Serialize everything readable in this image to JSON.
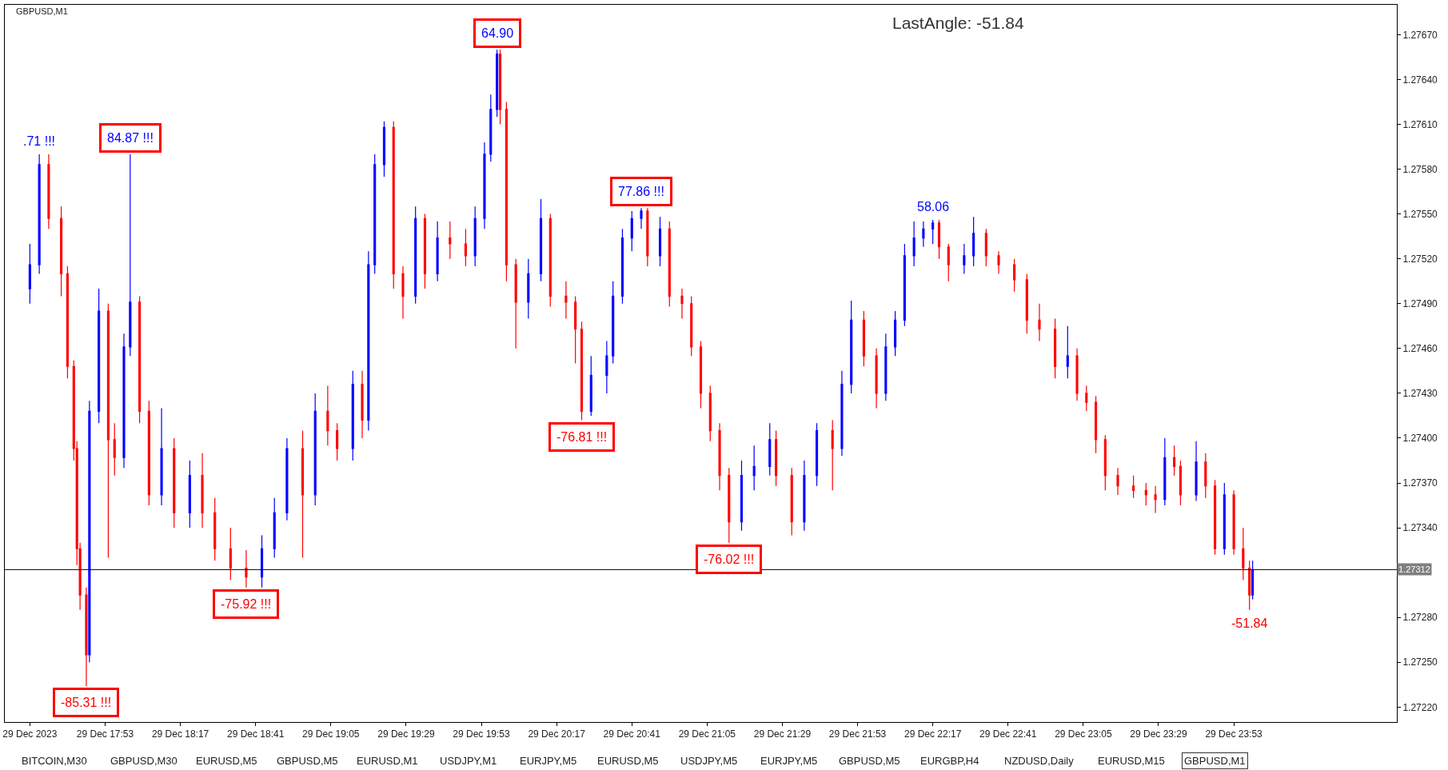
{
  "chart_data": {
    "type": "candlestick",
    "title": "GBPUSD,M1",
    "x": [
      "2023-12-29T17:29",
      "2023-12-29T17:32",
      "2023-12-29T17:35",
      "2023-12-29T17:39",
      "2023-12-29T17:41",
      "2023-12-29T17:43",
      "2023-12-29T17:44",
      "2023-12-29T17:45",
      "2023-12-29T17:47",
      "2023-12-29T17:48",
      "2023-12-29T17:51",
      "2023-12-29T17:54",
      "2023-12-29T17:56",
      "2023-12-29T17:59",
      "2023-12-29T18:01",
      "2023-12-29T18:04",
      "2023-12-29T18:07",
      "2023-12-29T18:11",
      "2023-12-29T18:15",
      "2023-12-29T18:20",
      "2023-12-29T18:24",
      "2023-12-29T18:28",
      "2023-12-29T18:33",
      "2023-12-29T18:38",
      "2023-12-29T18:43",
      "2023-12-29T18:47",
      "2023-12-29T18:51",
      "2023-12-29T18:56",
      "2023-12-29T19:00",
      "2023-12-29T19:04",
      "2023-12-29T19:07",
      "2023-12-29T19:12",
      "2023-12-29T19:15",
      "2023-12-29T19:17",
      "2023-12-29T19:19",
      "2023-12-29T19:22",
      "2023-12-29T19:25",
      "2023-12-29T19:28",
      "2023-12-29T19:32",
      "2023-12-29T19:35",
      "2023-12-29T19:39",
      "2023-12-29T19:43",
      "2023-12-29T19:48",
      "2023-12-29T19:51",
      "2023-12-29T19:54",
      "2023-12-29T19:56",
      "2023-12-29T19:58",
      "2023-12-29T19:59",
      "2023-12-29T20:01",
      "2023-12-29T20:04",
      "2023-12-29T20:08",
      "2023-12-29T20:12",
      "2023-12-29T20:15",
      "2023-12-29T20:20",
      "2023-12-29T20:23",
      "2023-12-29T20:25",
      "2023-12-29T20:28",
      "2023-12-29T20:33",
      "2023-12-29T20:35",
      "2023-12-29T20:38",
      "2023-12-29T20:41",
      "2023-12-29T20:44",
      "2023-12-29T20:46",
      "2023-12-29T20:50",
      "2023-12-29T20:53",
      "2023-12-29T20:57",
      "2023-12-29T21:00",
      "2023-12-29T21:03",
      "2023-12-29T21:06",
      "2023-12-29T21:09",
      "2023-12-29T21:12",
      "2023-12-29T21:16",
      "2023-12-29T21:20",
      "2023-12-29T21:25",
      "2023-12-29T21:27",
      "2023-12-29T21:32",
      "2023-12-29T21:36",
      "2023-12-29T21:40",
      "2023-12-29T21:45",
      "2023-12-29T21:48",
      "2023-12-29T21:51",
      "2023-12-29T21:55",
      "2023-12-29T21:59",
      "2023-12-29T22:02",
      "2023-12-29T22:05",
      "2023-12-29T22:08",
      "2023-12-29T22:11",
      "2023-12-29T22:14",
      "2023-12-29T22:17",
      "2023-12-29T22:19",
      "2023-12-29T22:22",
      "2023-12-29T22:27",
      "2023-12-29T22:30",
      "2023-12-29T22:34",
      "2023-12-29T22:38",
      "2023-12-29T22:43",
      "2023-12-29T22:47",
      "2023-12-29T22:51",
      "2023-12-29T22:56",
      "2023-12-29T23:00",
      "2023-12-29T23:03",
      "2023-12-29T23:06",
      "2023-12-29T23:09",
      "2023-12-29T23:12",
      "2023-12-29T23:16",
      "2023-12-29T23:21",
      "2023-12-29T23:25",
      "2023-12-29T23:28",
      "2023-12-29T23:31",
      "2023-12-29T23:34",
      "2023-12-29T23:36",
      "2023-12-29T23:41",
      "2023-12-29T23:44",
      "2023-12-29T23:47",
      "2023-12-29T23:50",
      "2023-12-29T23:53",
      "2023-12-29T23:56",
      "2023-12-29T23:58",
      "2023-12-29T23:59"
    ],
    "ohlc": [
      [
        1.275,
        1.2753,
        1.2749,
        1.27516
      ],
      [
        1.27516,
        1.2759,
        1.2751,
        1.27583
      ],
      [
        1.27583,
        1.2759,
        1.2754,
        1.27547
      ],
      [
        1.27547,
        1.27555,
        1.27495,
        1.2751
      ],
      [
        1.2751,
        1.27515,
        1.2744,
        1.27448
      ],
      [
        1.27448,
        1.27452,
        1.27385,
        1.27393
      ],
      [
        1.27393,
        1.27398,
        1.27315,
        1.27326
      ],
      [
        1.27326,
        1.2733,
        1.27285,
        1.27295
      ],
      [
        1.27295,
        1.273,
        1.27234,
        1.27255
      ],
      [
        1.27255,
        1.27425,
        1.2725,
        1.27418
      ],
      [
        1.27418,
        1.275,
        1.2741,
        1.27485
      ],
      [
        1.27485,
        1.2749,
        1.2732,
        1.27399
      ],
      [
        1.27399,
        1.2741,
        1.27375,
        1.27387
      ],
      [
        1.27387,
        1.2747,
        1.2738,
        1.27461
      ],
      [
        1.27461,
        1.2759,
        1.27455,
        1.27491
      ],
      [
        1.27491,
        1.27495,
        1.2741,
        1.27418
      ],
      [
        1.27418,
        1.27425,
        1.27355,
        1.27362
      ],
      [
        1.27362,
        1.2742,
        1.27355,
        1.27393
      ],
      [
        1.27393,
        1.274,
        1.2734,
        1.2735
      ],
      [
        1.2735,
        1.27385,
        1.2734,
        1.27375
      ],
      [
        1.27375,
        1.2739,
        1.2734,
        1.2735
      ],
      [
        1.2735,
        1.2736,
        1.27318,
        1.27326
      ],
      [
        1.27326,
        1.2734,
        1.27305,
        1.27313
      ],
      [
        1.27313,
        1.27325,
        1.273,
        1.27307
      ],
      [
        1.27307,
        1.27335,
        1.273,
        1.27326
      ],
      [
        1.27326,
        1.2736,
        1.2732,
        1.2735
      ],
      [
        1.2735,
        1.274,
        1.27345,
        1.27393
      ],
      [
        1.27393,
        1.27405,
        1.2732,
        1.27362
      ],
      [
        1.27362,
        1.2743,
        1.27355,
        1.27418
      ],
      [
        1.27418,
        1.27435,
        1.27395,
        1.27405
      ],
      [
        1.27405,
        1.2741,
        1.27385,
        1.27393
      ],
      [
        1.27393,
        1.27445,
        1.27385,
        1.27436
      ],
      [
        1.27436,
        1.27445,
        1.274,
        1.27412
      ],
      [
        1.27412,
        1.27525,
        1.27405,
        1.27516
      ],
      [
        1.27516,
        1.2759,
        1.2751,
        1.27583
      ],
      [
        1.27583,
        1.27612,
        1.27575,
        1.27608
      ],
      [
        1.27608,
        1.27612,
        1.275,
        1.2751
      ],
      [
        1.2751,
        1.27515,
        1.2748,
        1.27495
      ],
      [
        1.27495,
        1.27555,
        1.2749,
        1.27547
      ],
      [
        1.27547,
        1.2755,
        1.275,
        1.2751
      ],
      [
        1.2751,
        1.27545,
        1.27505,
        1.27534
      ],
      [
        1.27534,
        1.27545,
        1.2752,
        1.2753
      ],
      [
        1.2753,
        1.2754,
        1.27515,
        1.27522
      ],
      [
        1.27522,
        1.27555,
        1.27515,
        1.27547
      ],
      [
        1.27547,
        1.27598,
        1.2754,
        1.2759
      ],
      [
        1.2759,
        1.2763,
        1.27585,
        1.2762
      ],
      [
        1.2762,
        1.2766,
        1.27615,
        1.27657
      ],
      [
        1.27657,
        1.2766,
        1.2761,
        1.2762
      ],
      [
        1.2762,
        1.27625,
        1.27505,
        1.27516
      ],
      [
        1.27516,
        1.2752,
        1.2746,
        1.27491
      ],
      [
        1.27491,
        1.2752,
        1.2748,
        1.2751
      ],
      [
        1.2751,
        1.2756,
        1.27505,
        1.27547
      ],
      [
        1.27547,
        1.2755,
        1.27488,
        1.27495
      ],
      [
        1.27495,
        1.27505,
        1.2748,
        1.27491
      ],
      [
        1.27491,
        1.27495,
        1.2745,
        1.27473
      ],
      [
        1.27473,
        1.27478,
        1.27412,
        1.27418
      ],
      [
        1.27418,
        1.27455,
        1.27415,
        1.27442
      ],
      [
        1.27442,
        1.27465,
        1.2743,
        1.27455
      ],
      [
        1.27455,
        1.27505,
        1.2745,
        1.27495
      ],
      [
        1.27495,
        1.2754,
        1.2749,
        1.27534
      ],
      [
        1.27534,
        1.27552,
        1.27525,
        1.27547
      ],
      [
        1.27547,
        1.27554,
        1.2754,
        1.27552
      ],
      [
        1.27552,
        1.27554,
        1.27515,
        1.27522
      ],
      [
        1.27522,
        1.27548,
        1.27515,
        1.2754
      ],
      [
        1.2754,
        1.27545,
        1.27488,
        1.27495
      ],
      [
        1.27495,
        1.275,
        1.2748,
        1.2749
      ],
      [
        1.2749,
        1.27495,
        1.27455,
        1.27461
      ],
      [
        1.27461,
        1.27465,
        1.2742,
        1.2743
      ],
      [
        1.2743,
        1.27435,
        1.27398,
        1.27405
      ],
      [
        1.27405,
        1.2741,
        1.27365,
        1.27375
      ],
      [
        1.27375,
        1.2738,
        1.2733,
        1.27344
      ],
      [
        1.27344,
        1.27385,
        1.27338,
        1.27375
      ],
      [
        1.27375,
        1.27395,
        1.27365,
        1.27381
      ],
      [
        1.27381,
        1.2741,
        1.27375,
        1.27399
      ],
      [
        1.27399,
        1.27405,
        1.27368,
        1.27375
      ],
      [
        1.27375,
        1.2738,
        1.27335,
        1.27344
      ],
      [
        1.27344,
        1.27385,
        1.27338,
        1.27375
      ],
      [
        1.27375,
        1.2741,
        1.27368,
        1.27405
      ],
      [
        1.27405,
        1.27412,
        1.27365,
        1.27393
      ],
      [
        1.27393,
        1.27445,
        1.27388,
        1.27436
      ],
      [
        1.27436,
        1.27492,
        1.2743,
        1.27479
      ],
      [
        1.27479,
        1.27485,
        1.27448,
        1.27455
      ],
      [
        1.27455,
        1.2746,
        1.2742,
        1.2743
      ],
      [
        1.2743,
        1.2747,
        1.27425,
        1.27461
      ],
      [
        1.27461,
        1.27485,
        1.27455,
        1.27479
      ],
      [
        1.27479,
        1.2753,
        1.27475,
        1.27522
      ],
      [
        1.27522,
        1.27545,
        1.27515,
        1.27534
      ],
      [
        1.27534,
        1.27545,
        1.27528,
        1.2754
      ],
      [
        1.2754,
        1.27546,
        1.2753,
        1.27544
      ],
      [
        1.27544,
        1.27546,
        1.2752,
        1.27528
      ],
      [
        1.27528,
        1.2753,
        1.27505,
        1.27516
      ],
      [
        1.27516,
        1.2753,
        1.2751,
        1.27522
      ],
      [
        1.27522,
        1.27548,
        1.27515,
        1.27537
      ],
      [
        1.27537,
        1.2754,
        1.27515,
        1.27522
      ],
      [
        1.27522,
        1.27525,
        1.2751,
        1.27516
      ],
      [
        1.27516,
        1.2752,
        1.27498,
        1.27506
      ],
      [
        1.27506,
        1.2751,
        1.2747,
        1.27479
      ],
      [
        1.27479,
        1.2749,
        1.27465,
        1.27473
      ],
      [
        1.27473,
        1.2748,
        1.2744,
        1.27448
      ],
      [
        1.27448,
        1.27475,
        1.2744,
        1.27455
      ],
      [
        1.27455,
        1.2746,
        1.27425,
        1.2743
      ],
      [
        1.2743,
        1.27435,
        1.27418,
        1.27424
      ],
      [
        1.27424,
        1.27428,
        1.2739,
        1.27399
      ],
      [
        1.27399,
        1.27402,
        1.27365,
        1.27375
      ],
      [
        1.27375,
        1.2738,
        1.27362,
        1.27368
      ],
      [
        1.27368,
        1.27375,
        1.2736,
        1.27365
      ],
      [
        1.27365,
        1.2737,
        1.27355,
        1.27362
      ],
      [
        1.27362,
        1.27368,
        1.2735,
        1.27359
      ],
      [
        1.27359,
        1.274,
        1.27355,
        1.27387
      ],
      [
        1.27387,
        1.27395,
        1.27375,
        1.27381
      ],
      [
        1.27381,
        1.27385,
        1.27355,
        1.27362
      ],
      [
        1.27362,
        1.27398,
        1.27358,
        1.27384
      ],
      [
        1.27384,
        1.2739,
        1.2736,
        1.27368
      ],
      [
        1.27368,
        1.27372,
        1.27322,
        1.27326
      ],
      [
        1.27326,
        1.2737,
        1.27322,
        1.27362
      ],
      [
        1.27362,
        1.27365,
        1.27322,
        1.27326
      ],
      [
        1.27326,
        1.2734,
        1.27305,
        1.27313
      ],
      [
        1.27313,
        1.27318,
        1.27285,
        1.27295
      ],
      [
        1.27295,
        1.27318,
        1.27292,
        1.27312
      ]
    ],
    "colors": [
      "#0000ff",
      "#0000ff",
      "#ff0000",
      "#ff0000",
      "#ff0000",
      "#ff0000",
      "#ff0000",
      "#ff0000",
      "#ff0000",
      "#0000ff",
      "#0000ff",
      "#ff0000",
      "#ff0000",
      "#0000ff",
      "#0000ff",
      "#ff0000",
      "#ff0000",
      "#0000ff",
      "#ff0000",
      "#0000ff",
      "#ff0000",
      "#ff0000",
      "#ff0000",
      "#ff0000",
      "#0000ff",
      "#0000ff",
      "#0000ff",
      "#ff0000",
      "#0000ff",
      "#ff0000",
      "#ff0000",
      "#0000ff",
      "#ff0000",
      "#0000ff",
      "#0000ff",
      "#0000ff",
      "#ff0000",
      "#ff0000",
      "#0000ff",
      "#ff0000",
      "#0000ff",
      "#ff0000",
      "#ff0000",
      "#0000ff",
      "#0000ff",
      "#0000ff",
      "#0000ff",
      "#ff0000",
      "#ff0000",
      "#ff0000",
      "#0000ff",
      "#0000ff",
      "#ff0000",
      "#ff0000",
      "#ff0000",
      "#ff0000",
      "#0000ff",
      "#0000ff",
      "#0000ff",
      "#0000ff",
      "#0000ff",
      "#0000ff",
      "#ff0000",
      "#0000ff",
      "#ff0000",
      "#ff0000",
      "#ff0000",
      "#ff0000",
      "#ff0000",
      "#ff0000",
      "#ff0000",
      "#0000ff",
      "#0000ff",
      "#0000ff",
      "#ff0000",
      "#ff0000",
      "#0000ff",
      "#0000ff",
      "#ff0000",
      "#0000ff",
      "#0000ff",
      "#ff0000",
      "#ff0000",
      "#0000ff",
      "#0000ff",
      "#0000ff",
      "#0000ff",
      "#0000ff",
      "#0000ff",
      "#ff0000",
      "#ff0000",
      "#0000ff",
      "#0000ff",
      "#ff0000",
      "#ff0000",
      "#ff0000",
      "#ff0000",
      "#ff0000",
      "#ff0000",
      "#0000ff",
      "#ff0000",
      "#ff0000",
      "#ff0000",
      "#ff0000",
      "#ff0000",
      "#ff0000",
      "#ff0000",
      "#ff0000",
      "#0000ff",
      "#ff0000",
      "#ff0000",
      "#0000ff",
      "#ff0000",
      "#ff0000",
      "#0000ff",
      "#ff0000",
      "#ff0000",
      "#ff0000",
      "#0000ff"
    ],
    "xlim": [
      "2023-12-29T17:21",
      "2023-12-30T00:45"
    ],
    "xticks": [
      {
        "value": "2023-12-29T17:29",
        "label": "29 Dec 2023"
      },
      {
        "value": "2023-12-29T17:53",
        "label": "29 Dec 17:53"
      },
      {
        "value": "2023-12-29T18:17",
        "label": "29 Dec 18:17"
      },
      {
        "value": "2023-12-29T18:41",
        "label": "29 Dec 18:41"
      },
      {
        "value": "2023-12-29T19:05",
        "label": "29 Dec 19:05"
      },
      {
        "value": "2023-12-29T19:29",
        "label": "29 Dec 19:29"
      },
      {
        "value": "2023-12-29T19:53",
        "label": "29 Dec 19:53"
      },
      {
        "value": "2023-12-29T20:17",
        "label": "29 Dec 20:17"
      },
      {
        "value": "2023-12-29T20:41",
        "label": "29 Dec 20:41"
      },
      {
        "value": "2023-12-29T21:05",
        "label": "29 Dec 21:05"
      },
      {
        "value": "2023-12-29T21:29",
        "label": "29 Dec 21:29"
      },
      {
        "value": "2023-12-29T21:53",
        "label": "29 Dec 21:53"
      },
      {
        "value": "2023-12-29T22:17",
        "label": "29 Dec 22:17"
      },
      {
        "value": "2023-12-29T22:41",
        "label": "29 Dec 22:41"
      },
      {
        "value": "2023-12-29T23:05",
        "label": "29 Dec 23:05"
      },
      {
        "value": "2023-12-29T23:29",
        "label": "29 Dec 23:29"
      },
      {
        "value": "2023-12-29T23:53",
        "label": "29 Dec 23:53"
      }
    ],
    "ylim": [
      1.2721,
      1.2769
    ],
    "yticks": [
      {
        "value": 1.2722,
        "label": "1.27220"
      },
      {
        "value": 1.2725,
        "label": "1.27250"
      },
      {
        "value": 1.2728,
        "label": "1.27280"
      },
      {
        "value": 1.2731,
        "label": null
      },
      {
        "value": 1.2734,
        "label": "1.27340"
      },
      {
        "value": 1.2737,
        "label": "1.27370"
      },
      {
        "value": 1.274,
        "label": "1.27400"
      },
      {
        "value": 1.2743,
        "label": "1.27430"
      },
      {
        "value": 1.2746,
        "label": "1.27460"
      },
      {
        "value": 1.2749,
        "label": "1.27490"
      },
      {
        "value": 1.2752,
        "label": "1.27520"
      },
      {
        "value": 1.2755,
        "label": "1.27550"
      },
      {
        "value": 1.2758,
        "label": "1.27580"
      },
      {
        "value": 1.2761,
        "label": "1.27610"
      },
      {
        "value": 1.2764,
        "label": "1.27640"
      },
      {
        "value": 1.2767,
        "label": "1.27670"
      }
    ],
    "ref_lines": [
      {
        "axis": "y",
        "value": 1.27312,
        "label": "1.27312",
        "color": "#000000"
      }
    ],
    "grid": false,
    "annotations": [
      "LastAngle: -51.84",
      "BITCOIN,M30",
      "GBPUSD,M30",
      "EURUSD,M5",
      "GBPUSD,M5",
      "EURUSD,M1",
      "USDJPY,M1",
      "EURJPY,M5",
      "EURUSD,M5",
      "USDJPY,M5",
      "EURJPY,M5",
      "GBPUSD,M5",
      "EURGBP,H4",
      "NZDUSD,Daily",
      "EURUSD,M15",
      "GBPUSD,M1",
      {
        "text": ".71 !!!",
        "x": "2023-12-29T17:32",
        "y": 1.2759
      },
      {
        "text": "84.87 !!!",
        "x": "2023-12-29T18:01",
        "y": 1.2759
      },
      {
        "text": "-85.31 !!!",
        "x": "2023-12-29T17:47",
        "y": 1.27234
      },
      {
        "text": "-75.92 !!!",
        "x": "2023-12-29T18:38",
        "y": 1.273
      },
      {
        "text": "64.90",
        "x": "2023-12-29T19:58",
        "y": 1.2766
      },
      {
        "text": "-76.81 !!!",
        "x": "2023-12-29T20:25",
        "y": 1.27412
      },
      {
        "text": "77.86 !!!",
        "x": "2023-12-29T20:44",
        "y": 1.27554
      },
      {
        "text": "-76.02 !!!",
        "x": "2023-12-29T21:12",
        "y": 1.2733
      },
      {
        "text": "58.06",
        "x": "2023-12-29T22:17",
        "y": 1.27546
      },
      {
        "text": "-51.84",
        "x": "2023-12-29T23:58",
        "y": 1.27285
      }
    ]
  }
}
